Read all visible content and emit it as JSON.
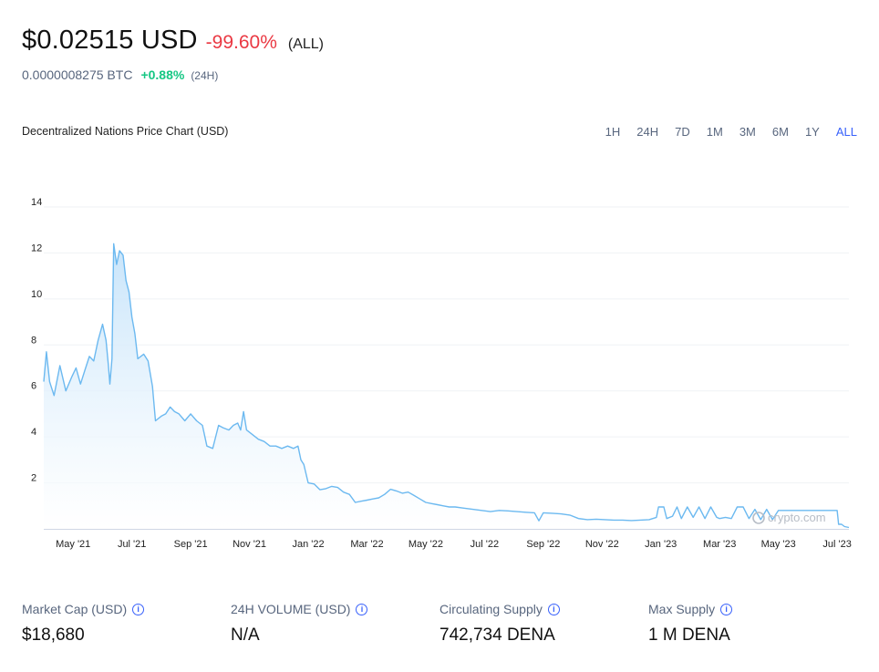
{
  "header": {
    "price": "$0.02515 USD",
    "change": "-99.60%",
    "change_period": "(ALL)",
    "btc_price": "0.0000008275 BTC",
    "btc_change": "+0.88%",
    "btc_change_period": "(24H)"
  },
  "colors": {
    "negative": "#ea3943",
    "positive": "#16c784",
    "accent": "#3861fb",
    "line": "#6cb9f0",
    "grid": "#eff2f5"
  },
  "chart_title": "Decentralized Nations Price Chart (USD)",
  "range_tabs": [
    {
      "label": "1H",
      "active": false
    },
    {
      "label": "24H",
      "active": false
    },
    {
      "label": "7D",
      "active": false
    },
    {
      "label": "1M",
      "active": false
    },
    {
      "label": "3M",
      "active": false
    },
    {
      "label": "6M",
      "active": false
    },
    {
      "label": "1Y",
      "active": false
    },
    {
      "label": "ALL",
      "active": true
    }
  ],
  "chart_data": {
    "type": "area",
    "title": "Decentralized Nations Price Chart (USD)",
    "xlabel": "",
    "ylabel": "",
    "x_unit": "months since Apr '21",
    "xlim": [
      0,
      27.4
    ],
    "ylim": [
      0,
      14
    ],
    "y_ticks": [
      2,
      4,
      6,
      8,
      10,
      12,
      14
    ],
    "x_ticks": [
      {
        "label": "May '21",
        "x": 1
      },
      {
        "label": "Jul '21",
        "x": 3
      },
      {
        "label": "Sep '21",
        "x": 5
      },
      {
        "label": "Nov '21",
        "x": 7
      },
      {
        "label": "Jan '22",
        "x": 9
      },
      {
        "label": "Mar '22",
        "x": 11
      },
      {
        "label": "May '22",
        "x": 13
      },
      {
        "label": "Jul '22",
        "x": 15
      },
      {
        "label": "Sep '22",
        "x": 17
      },
      {
        "label": "Nov '22",
        "x": 19
      },
      {
        "label": "Jan '23",
        "x": 21
      },
      {
        "label": "Mar '23",
        "x": 23
      },
      {
        "label": "May '23",
        "x": 25
      },
      {
        "label": "Jul '23",
        "x": 27
      }
    ],
    "grid": true,
    "series": [
      {
        "name": "Price",
        "points": [
          [
            0.0,
            6.4
          ],
          [
            0.09,
            7.7
          ],
          [
            0.2,
            6.4
          ],
          [
            0.35,
            5.8
          ],
          [
            0.55,
            7.1
          ],
          [
            0.75,
            6.0
          ],
          [
            0.95,
            6.6
          ],
          [
            1.1,
            7.0
          ],
          [
            1.25,
            6.3
          ],
          [
            1.4,
            6.9
          ],
          [
            1.55,
            7.5
          ],
          [
            1.7,
            7.3
          ],
          [
            1.85,
            8.2
          ],
          [
            2.0,
            8.9
          ],
          [
            2.12,
            8.2
          ],
          [
            2.2,
            7.1
          ],
          [
            2.25,
            6.3
          ],
          [
            2.32,
            7.4
          ],
          [
            2.38,
            12.4
          ],
          [
            2.48,
            11.5
          ],
          [
            2.58,
            12.1
          ],
          [
            2.7,
            11.9
          ],
          [
            2.8,
            10.8
          ],
          [
            2.9,
            10.3
          ],
          [
            3.0,
            9.2
          ],
          [
            3.1,
            8.5
          ],
          [
            3.2,
            7.4
          ],
          [
            3.4,
            7.6
          ],
          [
            3.55,
            7.3
          ],
          [
            3.7,
            6.2
          ],
          [
            3.8,
            4.7
          ],
          [
            4.0,
            4.9
          ],
          [
            4.15,
            5.0
          ],
          [
            4.3,
            5.3
          ],
          [
            4.45,
            5.1
          ],
          [
            4.6,
            5.0
          ],
          [
            4.8,
            4.7
          ],
          [
            5.0,
            5.0
          ],
          [
            5.2,
            4.7
          ],
          [
            5.4,
            4.5
          ],
          [
            5.55,
            3.6
          ],
          [
            5.75,
            3.5
          ],
          [
            5.95,
            4.5
          ],
          [
            6.1,
            4.4
          ],
          [
            6.3,
            4.3
          ],
          [
            6.45,
            4.5
          ],
          [
            6.6,
            4.6
          ],
          [
            6.7,
            4.3
          ],
          [
            6.8,
            5.1
          ],
          [
            6.9,
            4.3
          ],
          [
            7.1,
            4.1
          ],
          [
            7.3,
            3.9
          ],
          [
            7.5,
            3.8
          ],
          [
            7.7,
            3.6
          ],
          [
            7.9,
            3.6
          ],
          [
            8.1,
            3.5
          ],
          [
            8.3,
            3.6
          ],
          [
            8.5,
            3.5
          ],
          [
            8.65,
            3.6
          ],
          [
            8.75,
            3.0
          ],
          [
            8.85,
            2.8
          ],
          [
            9.0,
            2.0
          ],
          [
            9.2,
            1.95
          ],
          [
            9.4,
            1.7
          ],
          [
            9.6,
            1.75
          ],
          [
            9.8,
            1.85
          ],
          [
            10.0,
            1.8
          ],
          [
            10.2,
            1.6
          ],
          [
            10.4,
            1.5
          ],
          [
            10.6,
            1.15
          ],
          [
            10.8,
            1.2
          ],
          [
            11.0,
            1.25
          ],
          [
            11.2,
            1.3
          ],
          [
            11.4,
            1.35
          ],
          [
            11.6,
            1.5
          ],
          [
            11.8,
            1.72
          ],
          [
            12.0,
            1.65
          ],
          [
            12.2,
            1.55
          ],
          [
            12.4,
            1.6
          ],
          [
            12.6,
            1.45
          ],
          [
            12.8,
            1.3
          ],
          [
            13.0,
            1.15
          ],
          [
            13.2,
            1.1
          ],
          [
            13.4,
            1.05
          ],
          [
            13.6,
            1.0
          ],
          [
            13.8,
            0.95
          ],
          [
            14.0,
            0.95
          ],
          [
            14.3,
            0.9
          ],
          [
            14.6,
            0.85
          ],
          [
            14.9,
            0.8
          ],
          [
            15.2,
            0.75
          ],
          [
            15.5,
            0.8
          ],
          [
            15.8,
            0.78
          ],
          [
            16.1,
            0.75
          ],
          [
            16.4,
            0.72
          ],
          [
            16.7,
            0.7
          ],
          [
            16.85,
            0.35
          ],
          [
            17.0,
            0.7
          ],
          [
            17.3,
            0.68
          ],
          [
            17.6,
            0.65
          ],
          [
            17.9,
            0.6
          ],
          [
            18.2,
            0.45
          ],
          [
            18.5,
            0.4
          ],
          [
            18.8,
            0.42
          ],
          [
            19.1,
            0.4
          ],
          [
            19.4,
            0.38
          ],
          [
            19.7,
            0.38
          ],
          [
            20.0,
            0.36
          ],
          [
            20.3,
            0.38
          ],
          [
            20.6,
            0.4
          ],
          [
            20.85,
            0.5
          ],
          [
            20.92,
            0.95
          ],
          [
            21.1,
            0.95
          ],
          [
            21.2,
            0.45
          ],
          [
            21.4,
            0.55
          ],
          [
            21.55,
            0.95
          ],
          [
            21.7,
            0.45
          ],
          [
            21.9,
            0.95
          ],
          [
            22.1,
            0.5
          ],
          [
            22.3,
            0.95
          ],
          [
            22.5,
            0.45
          ],
          [
            22.7,
            0.95
          ],
          [
            22.9,
            0.5
          ],
          [
            23.0,
            0.45
          ],
          [
            23.2,
            0.5
          ],
          [
            23.4,
            0.45
          ],
          [
            23.6,
            0.95
          ],
          [
            23.8,
            0.95
          ],
          [
            24.0,
            0.45
          ],
          [
            24.2,
            0.85
          ],
          [
            24.4,
            0.4
          ],
          [
            24.6,
            0.85
          ],
          [
            24.8,
            0.4
          ],
          [
            25.0,
            0.8
          ],
          [
            25.3,
            0.8
          ],
          [
            25.8,
            0.8
          ],
          [
            26.3,
            0.8
          ],
          [
            26.8,
            0.8
          ],
          [
            27.0,
            0.8
          ],
          [
            27.05,
            0.2
          ],
          [
            27.15,
            0.2
          ],
          [
            27.25,
            0.1
          ],
          [
            27.4,
            0.06
          ]
        ]
      }
    ],
    "watermark": "crypto.com"
  },
  "stats": [
    {
      "label": "Market Cap (USD)",
      "value": "$18,680"
    },
    {
      "label": "24H VOLUME (USD)",
      "value": "N/A"
    },
    {
      "label": "Circulating Supply",
      "value": "742,734 DENA"
    },
    {
      "label": "Max Supply",
      "value": "1 M DENA"
    }
  ]
}
